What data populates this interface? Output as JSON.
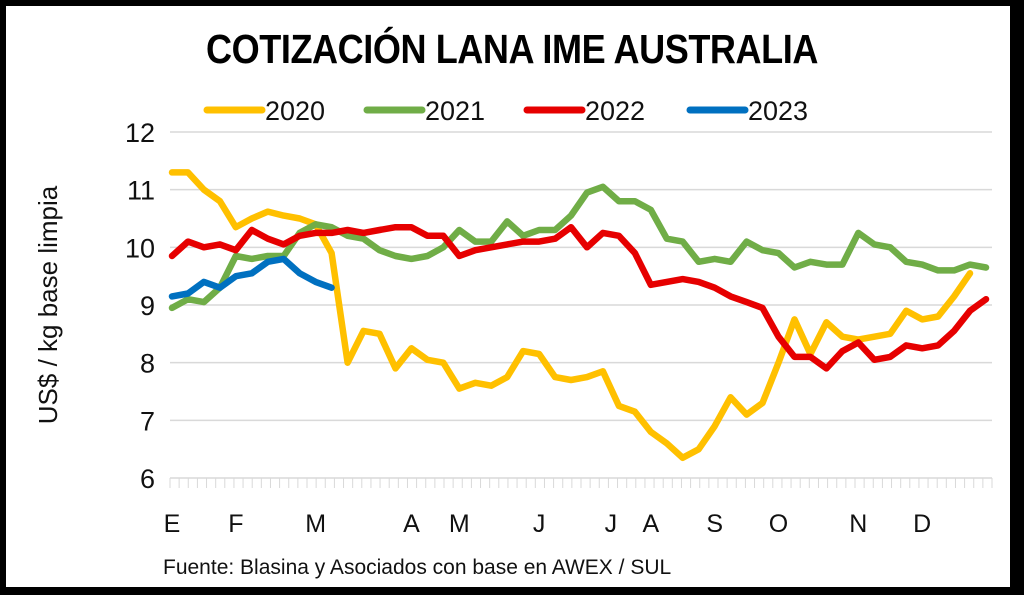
{
  "chart_data": {
    "type": "line",
    "title": "COTIZACIÓN LANA IME AUSTRALIA",
    "xlabel": "",
    "ylabel": "US$ / kg base limpia",
    "ylim": [
      6,
      12
    ],
    "yticks": [
      "6",
      "7",
      "8",
      "9",
      "10",
      "11",
      "12"
    ],
    "grid": true,
    "legend_position": "top",
    "x_unit": "week of year (1-52)",
    "month_labels": [
      {
        "label": "E",
        "week": 1
      },
      {
        "label": "F",
        "week": 5
      },
      {
        "label": "M",
        "week": 10
      },
      {
        "label": "A",
        "week": 16
      },
      {
        "label": "M",
        "week": 19
      },
      {
        "label": "J",
        "week": 24
      },
      {
        "label": "J",
        "week": 28.5
      },
      {
        "label": "A",
        "week": 31
      },
      {
        "label": "S",
        "week": 35
      },
      {
        "label": "O",
        "week": 39
      },
      {
        "label": "N",
        "week": 44
      },
      {
        "label": "D",
        "week": 48
      }
    ],
    "source": "Fuente: Blasina y Asociados con base en AWEX / SUL",
    "series": [
      {
        "name": "2020",
        "color": "#FFC000",
        "x": [
          1,
          2,
          3,
          4,
          5,
          6,
          7,
          8,
          9,
          10,
          11,
          12,
          13,
          14,
          15,
          16,
          17,
          18,
          19,
          20,
          21,
          22,
          23,
          24,
          25,
          26,
          27,
          28,
          29,
          30,
          31,
          32,
          33,
          34,
          35,
          36,
          37,
          38,
          39,
          40,
          41,
          42,
          43,
          44,
          45,
          46,
          47,
          48,
          49,
          50,
          51
        ],
        "values": [
          11.3,
          11.3,
          11.0,
          10.8,
          10.35,
          10.5,
          10.62,
          10.55,
          10.5,
          10.4,
          9.9,
          8.0,
          8.55,
          8.5,
          7.9,
          8.25,
          8.05,
          8.0,
          7.55,
          7.65,
          7.6,
          7.75,
          8.2,
          8.15,
          7.75,
          7.7,
          7.75,
          7.85,
          7.25,
          7.15,
          6.8,
          6.6,
          6.35,
          6.5,
          6.9,
          7.4,
          7.1,
          7.3,
          8.0,
          8.75,
          8.15,
          8.7,
          8.45,
          8.4,
          8.45,
          8.5,
          8.9,
          8.75,
          8.8,
          9.15,
          9.55
        ]
      },
      {
        "name": "2021",
        "color": "#70AD47",
        "x": [
          1,
          2,
          3,
          4,
          5,
          6,
          7,
          8,
          9,
          10,
          11,
          12,
          13,
          14,
          15,
          16,
          17,
          18,
          19,
          20,
          21,
          22,
          23,
          24,
          25,
          26,
          27,
          28,
          29,
          30,
          31,
          32,
          33,
          34,
          35,
          36,
          37,
          38,
          39,
          40,
          41,
          42,
          43,
          44,
          45,
          46,
          47,
          48,
          49,
          50,
          51,
          52
        ],
        "values": [
          8.95,
          9.1,
          9.05,
          9.3,
          9.85,
          9.8,
          9.85,
          9.85,
          10.25,
          10.4,
          10.35,
          10.2,
          10.15,
          9.95,
          9.85,
          9.8,
          9.85,
          10.0,
          10.3,
          10.1,
          10.1,
          10.45,
          10.2,
          10.3,
          10.3,
          10.55,
          10.95,
          11.05,
          10.8,
          10.8,
          10.65,
          10.15,
          10.1,
          9.75,
          9.8,
          9.75,
          10.1,
          9.95,
          9.9,
          9.65,
          9.75,
          9.7,
          9.7,
          10.25,
          10.05,
          10.0,
          9.75,
          9.7,
          9.6,
          9.6,
          9.7,
          9.65
        ]
      },
      {
        "name": "2022",
        "color": "#E60000",
        "x": [
          1,
          2,
          3,
          4,
          5,
          6,
          7,
          8,
          9,
          10,
          11,
          12,
          13,
          14,
          15,
          16,
          17,
          18,
          19,
          20,
          21,
          22,
          23,
          24,
          25,
          26,
          27,
          28,
          29,
          30,
          31,
          32,
          33,
          34,
          35,
          36,
          37,
          38,
          39,
          40,
          41,
          42,
          43,
          44,
          45,
          46,
          47,
          48,
          49,
          50,
          51,
          52
        ],
        "values": [
          9.85,
          10.1,
          10.0,
          10.05,
          9.95,
          10.3,
          10.15,
          10.05,
          10.2,
          10.25,
          10.25,
          10.3,
          10.25,
          10.3,
          10.35,
          10.35,
          10.2,
          10.2,
          9.85,
          9.95,
          10.0,
          10.05,
          10.1,
          10.1,
          10.15,
          10.35,
          10.0,
          10.25,
          10.2,
          9.9,
          9.35,
          9.4,
          9.45,
          9.4,
          9.3,
          9.15,
          9.05,
          8.95,
          8.45,
          8.1,
          8.1,
          7.9,
          8.2,
          8.35,
          8.05,
          8.1,
          8.3,
          8.25,
          8.3,
          8.55,
          8.9,
          9.1
        ]
      },
      {
        "name": "2023",
        "color": "#0070C0",
        "x": [
          1,
          2,
          3,
          4,
          5,
          6,
          7,
          8,
          9,
          10,
          11
        ],
        "values": [
          9.15,
          9.2,
          9.4,
          9.3,
          9.5,
          9.55,
          9.75,
          9.8,
          9.55,
          9.4,
          9.3
        ]
      }
    ]
  }
}
